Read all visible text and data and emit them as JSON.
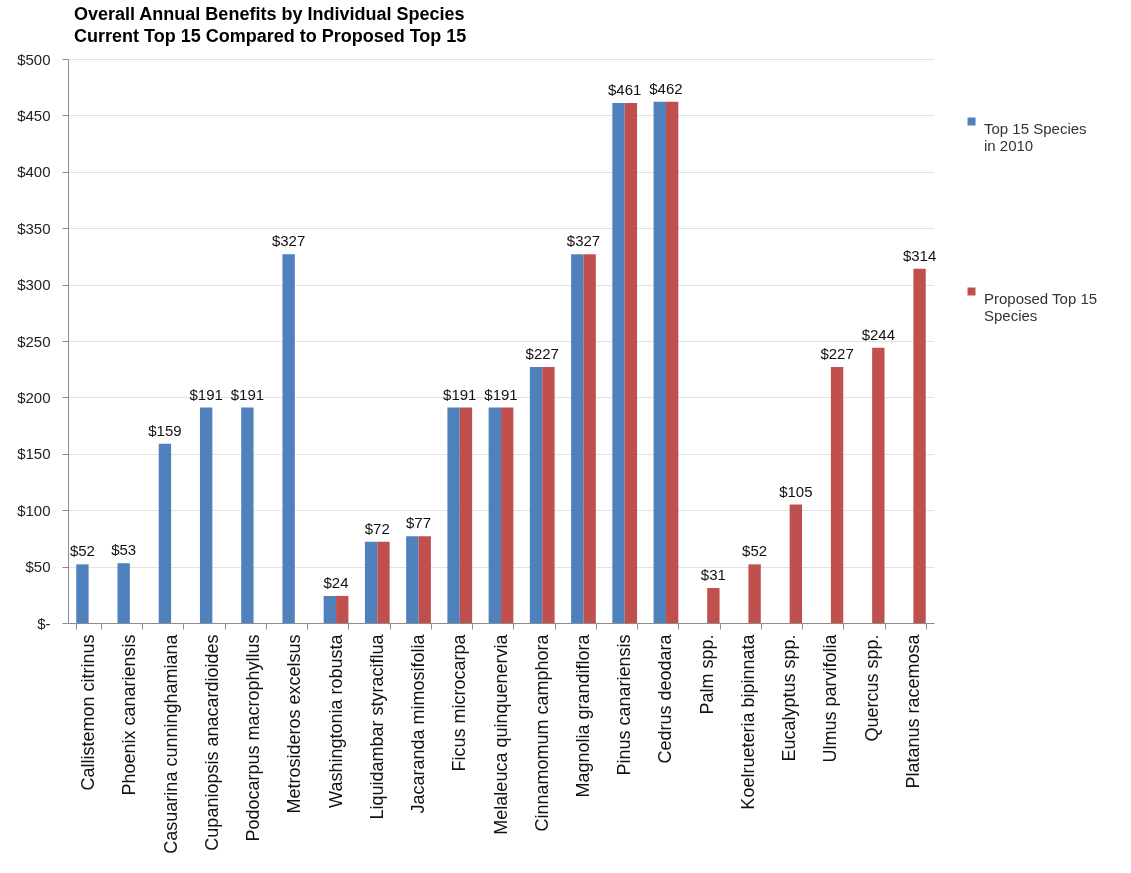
{
  "chart_data": {
    "type": "bar",
    "title": "Overall Annual Benefits by Individual Species",
    "subtitle": "Current Top 15 Compared to Proposed Top 15",
    "categories": [
      "Callistemon citrinus",
      "Phoenix canariensis",
      "Casuarina cunninghamiana",
      "Cupaniopsis anacardioides",
      "Podocarpus macrophyllus",
      "Metrosideros excelsus",
      "Washingtonia robusta",
      "Liquidambar styraciflua",
      "Jacaranda mimosifolia",
      "Ficus microcarpa",
      "Melaleuca quinquenervia",
      "Cinnamomum camphora",
      "Magnolia grandiflora",
      "Pinus canariensis",
      "Cedrus deodara",
      "Palm spp.",
      "Koelrueteria bipinnata",
      "Eucalyptus spp.",
      "Ulmus parvifolia",
      "Quercus spp.",
      "Platanus racemosa"
    ],
    "series": [
      {
        "name": "Top 15 Species in 2010",
        "color": "#4f81bd",
        "values": [
          52,
          53,
          159,
          191,
          191,
          327,
          24,
          72,
          77,
          191,
          191,
          227,
          327,
          461,
          462,
          null,
          null,
          null,
          null,
          null,
          null
        ],
        "value_labels": [
          "$52",
          "$53",
          "$159",
          "$191",
          "$191",
          "$327",
          "$24",
          "$72",
          "$77",
          "$191",
          "$191",
          "$227",
          "$327",
          "$461",
          "$462",
          null,
          null,
          null,
          null,
          null,
          null
        ]
      },
      {
        "name": "Proposed Top 15 Species",
        "color": "#c0504d",
        "values": [
          null,
          null,
          null,
          null,
          null,
          null,
          24,
          72,
          77,
          191,
          191,
          227,
          327,
          461,
          462,
          31,
          52,
          105,
          227,
          244,
          314
        ],
        "value_labels": [
          null,
          null,
          null,
          null,
          null,
          null,
          null,
          null,
          null,
          null,
          null,
          null,
          null,
          null,
          null,
          "$31",
          "$52",
          "$105",
          "$227",
          "$244",
          "$314"
        ]
      }
    ],
    "ylim": [
      0,
      500
    ],
    "yticks": [
      {
        "value": 0,
        "label": "$-"
      },
      {
        "value": 50,
        "label": "$50"
      },
      {
        "value": 100,
        "label": "$100"
      },
      {
        "value": 150,
        "label": "$150"
      },
      {
        "value": 200,
        "label": "$200"
      },
      {
        "value": 250,
        "label": "$250"
      },
      {
        "value": 300,
        "label": "$300"
      },
      {
        "value": 350,
        "label": "$350"
      },
      {
        "value": 400,
        "label": "$400"
      },
      {
        "value": 450,
        "label": "$450"
      },
      {
        "value": 500,
        "label": "$500"
      }
    ],
    "grid": "y",
    "legend": "right"
  }
}
